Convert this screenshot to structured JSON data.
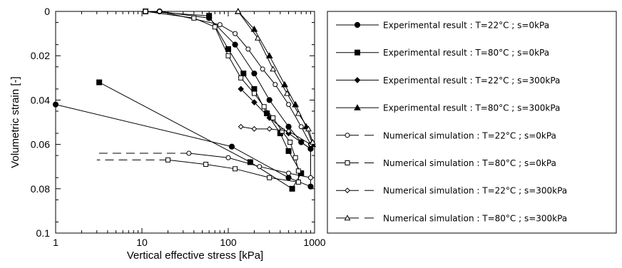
{
  "chart_data": {
    "type": "line",
    "xlabel": "Vertical effective stress [kPa]",
    "ylabel": "Volumetric strain [-]",
    "x_scale": "log",
    "xlim": [
      1,
      1000
    ],
    "ylim": [
      0,
      0.1
    ],
    "y_inverted": true,
    "x_ticks": [
      1,
      10,
      100,
      1000
    ],
    "x_tick_labels": [
      "1",
      "10",
      "100",
      "1000"
    ],
    "y_ticks": [
      0,
      0.02,
      0.04,
      0.06,
      0.08,
      0.1
    ],
    "y_tick_labels": [
      "0",
      "0.02",
      "0.04",
      "0.06",
      "0.08",
      "0.1"
    ],
    "grid": false,
    "legend_position": "right",
    "colors": {
      "line": "#000000",
      "background": "#ffffff"
    },
    "series": [
      {
        "name": "Experimental result : T=22°C ; s=0kPa",
        "line_style": "solid",
        "marker": "circle-filled",
        "points": [
          [
            16,
            0
          ],
          [
            60,
            0.003
          ],
          [
            120,
            0.015
          ],
          [
            200,
            0.028
          ],
          [
            300,
            0.04
          ],
          [
            500,
            0.052
          ],
          [
            700,
            0.059
          ],
          [
            900,
            0.062
          ],
          [
            900,
            0.079
          ],
          [
            500,
            0.075
          ],
          [
            110,
            0.061
          ],
          [
            1,
            0.042
          ]
        ]
      },
      {
        "name": "Experimental result : T=80°C ; s=0kPa",
        "line_style": "solid",
        "marker": "square-filled",
        "points": [
          [
            11,
            0
          ],
          [
            60,
            0.002
          ],
          [
            100,
            0.017
          ],
          [
            150,
            0.028
          ],
          [
            200,
            0.035
          ],
          [
            280,
            0.046
          ],
          [
            400,
            0.055
          ],
          [
            500,
            0.063
          ],
          [
            700,
            0.073
          ],
          [
            550,
            0.08
          ],
          [
            180,
            0.068
          ],
          [
            3.2,
            0.032
          ]
        ]
      },
      {
        "name": "Experimental result : T=22°C ; s=300kPa",
        "line_style": "solid",
        "marker": "diamond-filled",
        "points": [
          [
            140,
            0.035
          ],
          [
            200,
            0.041
          ],
          [
            300,
            0.048
          ],
          [
            500,
            0.055
          ],
          [
            900,
            0.062
          ]
        ]
      },
      {
        "name": "Experimental result : T=80°C ; s=300kPa",
        "line_style": "solid",
        "marker": "triangle-filled",
        "points": [
          [
            130,
            0
          ],
          [
            200,
            0.008
          ],
          [
            300,
            0.02
          ],
          [
            450,
            0.033
          ],
          [
            600,
            0.042
          ],
          [
            800,
            0.052
          ],
          [
            950,
            0.06
          ]
        ]
      },
      {
        "name": "Numerical simulation : T=22°C ; s=0kPa",
        "line_style": "solid",
        "marker": "circle-open",
        "points": [
          [
            16,
            0
          ],
          [
            80,
            0.006
          ],
          [
            120,
            0.01
          ],
          [
            170,
            0.017
          ],
          [
            250,
            0.026
          ],
          [
            350,
            0.033
          ],
          [
            500,
            0.042
          ],
          [
            700,
            0.052
          ],
          [
            900,
            0.06
          ],
          [
            900,
            0.075
          ],
          [
            500,
            0.073
          ],
          [
            230,
            0.07
          ],
          [
            100,
            0.066
          ],
          [
            35,
            0.064
          ]
        ],
        "unloading_tail": {
          "to_x": 3,
          "dashed": true
        }
      },
      {
        "name": "Numerical simulation : T=80°C ; s=0kPa",
        "line_style": "solid",
        "marker": "square-open",
        "points": [
          [
            11,
            0
          ],
          [
            40,
            0.003
          ],
          [
            70,
            0.007
          ],
          [
            100,
            0.02
          ],
          [
            140,
            0.03
          ],
          [
            200,
            0.037
          ],
          [
            260,
            0.043
          ],
          [
            330,
            0.048
          ],
          [
            420,
            0.054
          ],
          [
            520,
            0.059
          ],
          [
            600,
            0.066
          ],
          [
            650,
            0.072
          ],
          [
            650,
            0.077
          ],
          [
            300,
            0.075
          ],
          [
            120,
            0.071
          ],
          [
            55,
            0.069
          ],
          [
            20,
            0.067
          ]
        ],
        "unloading_tail": {
          "to_x": 3,
          "dashed": true
        }
      },
      {
        "name": "Numerical simulation : T=22°C ; s=300kPa",
        "line_style": "solid",
        "marker": "diamond-open",
        "points": [
          [
            140,
            0.052
          ],
          [
            200,
            0.053
          ],
          [
            300,
            0.053
          ],
          [
            500,
            0.054
          ],
          [
            900,
            0.06
          ]
        ]
      },
      {
        "name": "Numerical simulation : T=80°C ; s=300kPa",
        "line_style": "solid",
        "marker": "triangle-open",
        "points": [
          [
            130,
            0
          ],
          [
            220,
            0.012
          ],
          [
            330,
            0.026
          ],
          [
            480,
            0.037
          ],
          [
            650,
            0.046
          ],
          [
            850,
            0.053
          ],
          [
            950,
            0.059
          ]
        ]
      }
    ]
  }
}
